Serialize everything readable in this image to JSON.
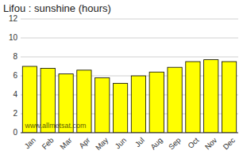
{
  "chart_data": {
    "type": "bar",
    "title": "Lifou : sunshine (hours)",
    "categories": [
      "Jan",
      "Feb",
      "Mar",
      "Apr",
      "May",
      "Jun",
      "Jul",
      "Aug",
      "Sep",
      "Oct",
      "Nov",
      "Dec"
    ],
    "values": [
      7.0,
      6.8,
      6.2,
      6.6,
      5.8,
      5.2,
      6.0,
      6.4,
      6.9,
      7.5,
      7.7,
      7.5
    ],
    "color": "#FFFF00",
    "ylim": [
      0,
      12
    ],
    "yticks": [
      0,
      2,
      4,
      6,
      8,
      10,
      12
    ],
    "grid": true,
    "annotation": "www.allmetsat.com"
  }
}
